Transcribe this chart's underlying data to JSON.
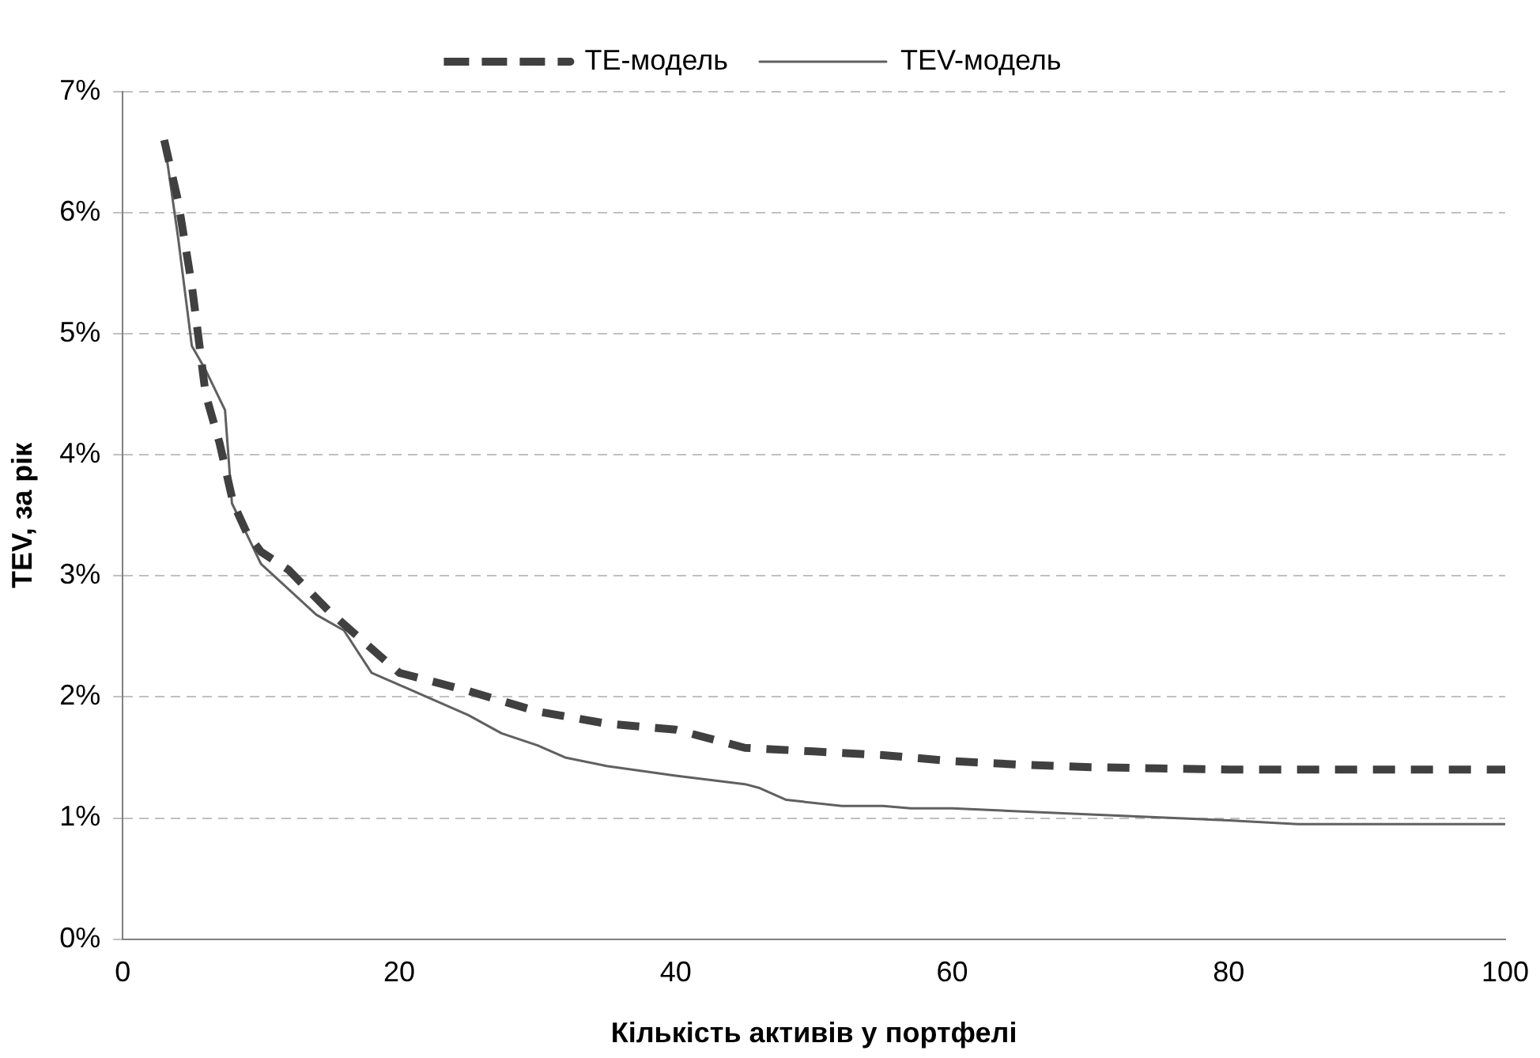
{
  "chart_data": {
    "type": "line",
    "xlabel": "Кількість активів у портфелі",
    "ylabel": "TEV, за рік",
    "xlim": [
      0,
      100
    ],
    "xticks": [
      0,
      20,
      40,
      60,
      80,
      100
    ],
    "ylim": [
      0,
      7
    ],
    "yticks": [
      {
        "value": 0,
        "label": "0%"
      },
      {
        "value": 1,
        "label": "1%"
      },
      {
        "value": 2,
        "label": "2%"
      },
      {
        "value": 3,
        "label": "3%"
      },
      {
        "value": 4,
        "label": "4%"
      },
      {
        "value": 5,
        "label": "5%"
      },
      {
        "value": 6,
        "label": "6%"
      },
      {
        "value": 7,
        "label": "7%"
      }
    ],
    "grid": "y",
    "legend": "top",
    "marker": "none",
    "series": [
      {
        "name": "TE-модель",
        "color": "#404040",
        "line_style": "dashed",
        "x": [
          3,
          4,
          5,
          6,
          7,
          8,
          9,
          10,
          12,
          15,
          18,
          20,
          25,
          30,
          35,
          40,
          45,
          50,
          55,
          60,
          65,
          70,
          75,
          80,
          85,
          90,
          100
        ],
        "values": [
          6.6,
          6.1,
          5.4,
          4.5,
          4.1,
          3.6,
          3.35,
          3.2,
          3.05,
          2.7,
          2.4,
          2.2,
          2.05,
          1.88,
          1.78,
          1.73,
          1.58,
          1.55,
          1.52,
          1.47,
          1.44,
          1.42,
          1.41,
          1.4,
          1.4,
          1.4,
          1.4
        ]
      },
      {
        "name": "TEV-модель",
        "color": "#606060",
        "line_style": "solid",
        "x": [
          3,
          4,
          5,
          6,
          7.4,
          7.9,
          10,
          14,
          16,
          18,
          20,
          25,
          27.4,
          30,
          32,
          35,
          40,
          45,
          46,
          48,
          52,
          55,
          57,
          60,
          70,
          80,
          85,
          100
        ],
        "values": [
          6.6,
          5.8,
          4.9,
          4.7,
          4.37,
          3.6,
          3.1,
          2.68,
          2.55,
          2.2,
          2.1,
          1.85,
          1.7,
          1.6,
          1.5,
          1.43,
          1.35,
          1.28,
          1.25,
          1.15,
          1.1,
          1.1,
          1.08,
          1.08,
          1.03,
          0.98,
          0.95,
          0.95
        ]
      }
    ]
  }
}
